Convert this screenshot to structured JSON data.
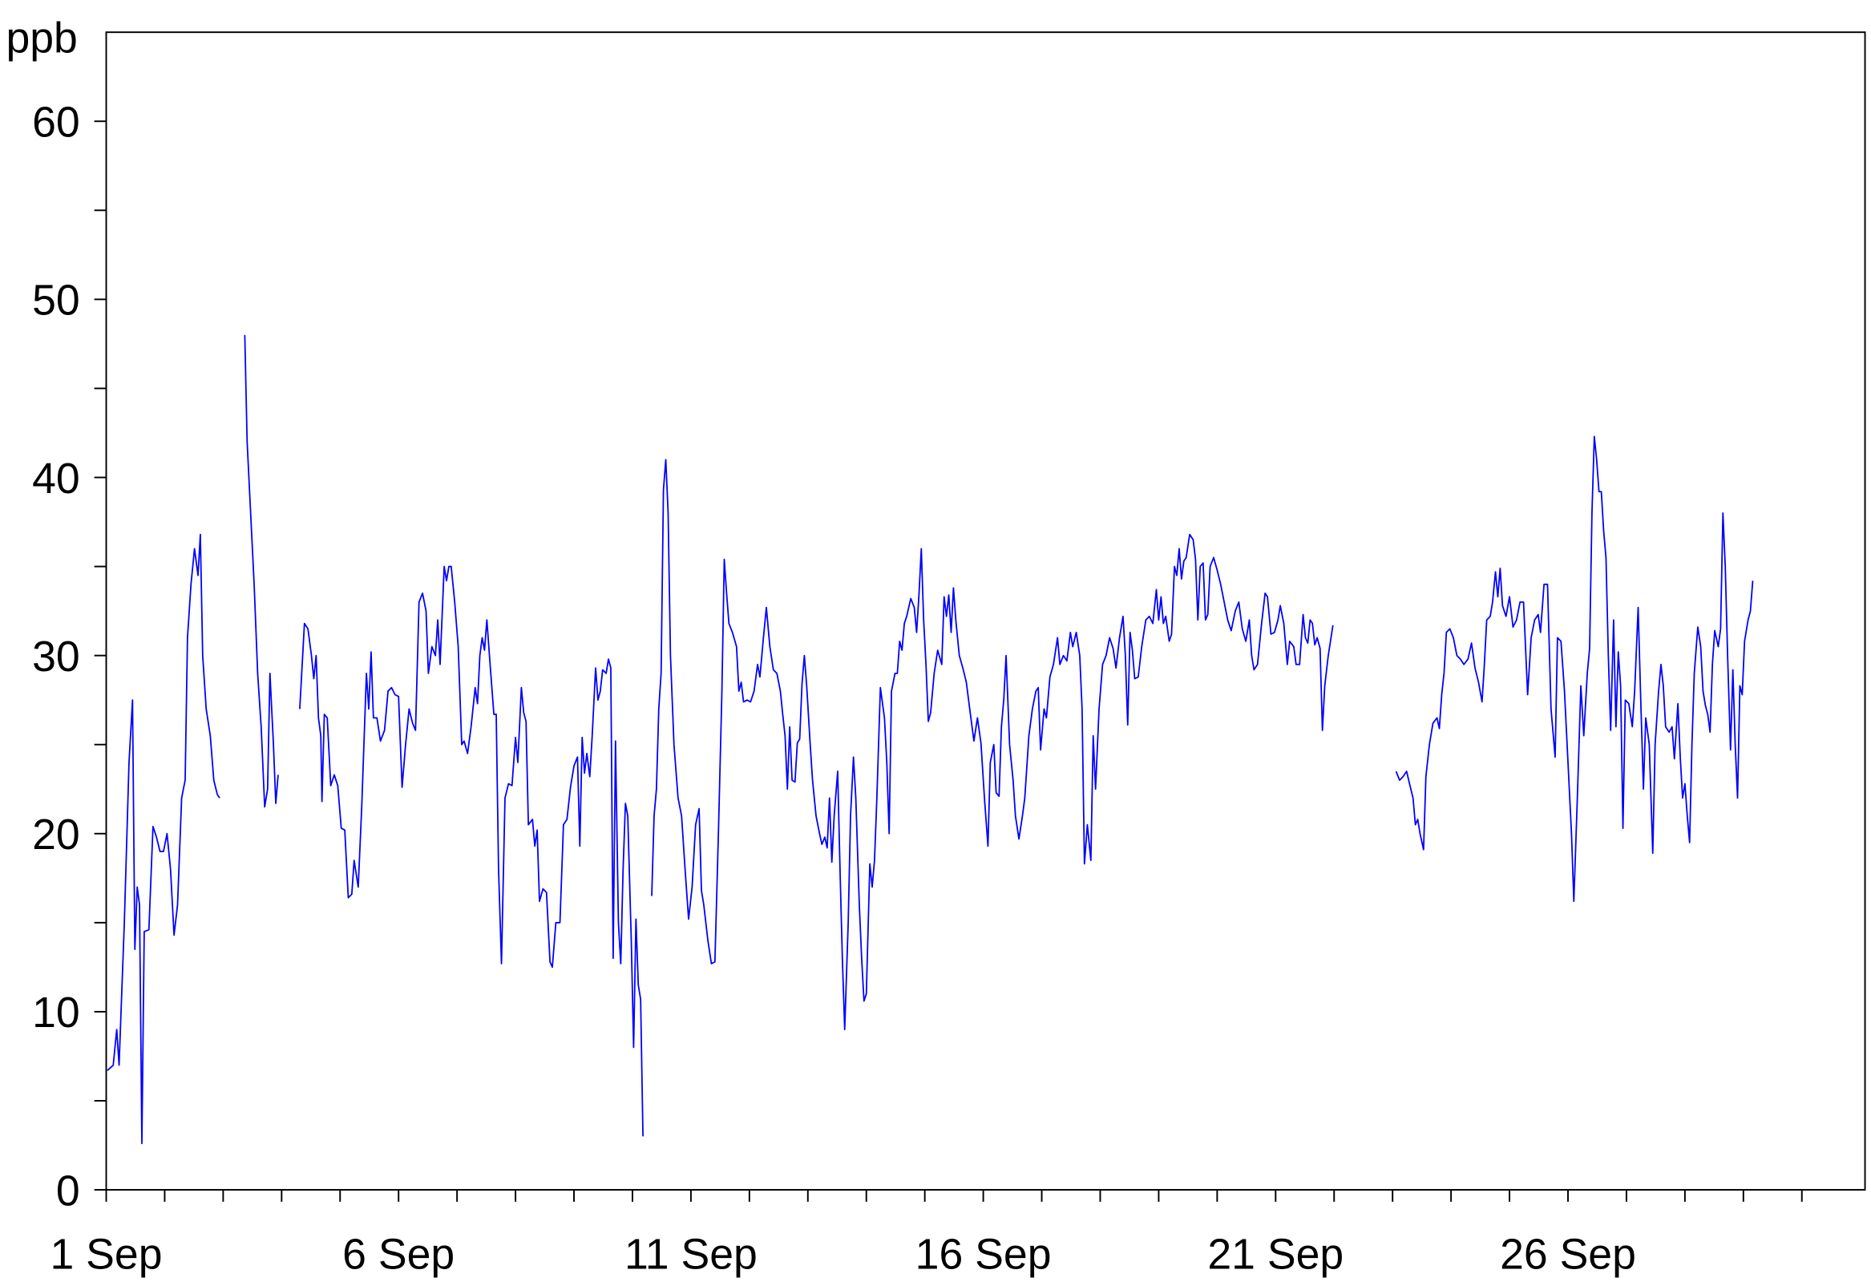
{
  "chart_data": {
    "type": "line",
    "ylabel": "ppb",
    "color": "#0000ff",
    "xlim": [
      1,
      31.08
    ],
    "ylim": [
      0,
      65
    ],
    "xticks": [
      {
        "value": 1,
        "label": "1 Sep"
      },
      {
        "value": 6,
        "label": "6 Sep"
      },
      {
        "value": 11,
        "label": "11 Sep"
      },
      {
        "value": 16,
        "label": "16 Sep"
      },
      {
        "value": 21,
        "label": "21 Sep"
      },
      {
        "value": 26,
        "label": "26 Sep"
      }
    ],
    "xminorticks": [
      2,
      3,
      4,
      5,
      7,
      8,
      9,
      10,
      12,
      13,
      14,
      15,
      17,
      18,
      19,
      20,
      22,
      23,
      24,
      25,
      27,
      28,
      29,
      30
    ],
    "yticks": [
      0,
      10,
      20,
      30,
      40,
      50,
      60
    ],
    "yminorticks": [
      5,
      15,
      25,
      35,
      45,
      55
    ],
    "x": [
      1.02,
      1.12,
      1.18,
      1.22,
      1.31,
      1.39,
      1.45,
      1.49,
      1.53,
      1.57,
      1.61,
      1.65,
      1.73,
      1.8,
      1.86,
      1.92,
      1.98,
      2.04,
      2.1,
      2.16,
      2.22,
      2.29,
      2.35,
      2.39,
      2.45,
      2.51,
      2.57,
      2.61,
      2.65,
      2.71,
      2.78,
      2.84,
      2.9,
      2.94,
      3.1,
      3.37,
      3.41,
      3.47,
      3.53,
      3.59,
      3.65,
      3.71,
      3.76,
      3.8,
      3.86,
      3.9,
      3.94,
      4.1,
      4.31,
      4.39,
      4.45,
      4.51,
      4.55,
      4.59,
      4.63,
      4.67,
      4.69,
      4.73,
      4.78,
      4.84,
      4.9,
      4.96,
      5.02,
      5.08,
      5.14,
      5.2,
      5.24,
      5.31,
      5.37,
      5.45,
      5.49,
      5.53,
      5.57,
      5.63,
      5.69,
      5.76,
      5.82,
      5.88,
      5.94,
      6.0,
      6.06,
      6.12,
      6.18,
      6.24,
      6.29,
      6.35,
      6.41,
      6.47,
      6.51,
      6.57,
      6.63,
      6.67,
      6.71,
      6.78,
      6.82,
      6.86,
      6.9,
      6.96,
      7.02,
      7.08,
      7.12,
      7.18,
      7.24,
      7.31,
      7.35,
      7.39,
      7.43,
      7.47,
      7.51,
      7.57,
      7.63,
      7.67,
      7.71,
      7.76,
      7.82,
      7.88,
      7.94,
      8.0,
      8.04,
      8.1,
      8.14,
      8.18,
      8.22,
      8.29,
      8.33,
      8.37,
      8.41,
      8.47,
      8.53,
      8.59,
      8.63,
      8.69,
      8.76,
      8.82,
      8.88,
      8.94,
      9.0,
      9.06,
      9.1,
      9.14,
      9.18,
      9.22,
      9.27,
      9.31,
      9.37,
      9.41,
      9.45,
      9.49,
      9.55,
      9.59,
      9.63,
      9.67,
      9.71,
      9.76,
      9.8,
      9.84,
      9.88,
      9.92,
      9.98,
      10.02,
      10.06,
      10.1,
      10.14,
      10.18,
      10.25,
      10.33,
      10.37,
      10.41,
      10.45,
      10.49,
      10.53,
      10.57,
      10.61,
      10.65,
      10.71,
      10.78,
      10.84,
      10.9,
      10.96,
      11.02,
      11.08,
      11.14,
      11.18,
      11.22,
      11.29,
      11.35,
      11.41,
      11.47,
      11.53,
      11.57,
      11.61,
      11.65,
      11.71,
      11.78,
      11.82,
      11.86,
      11.9,
      11.96,
      12.02,
      12.08,
      12.14,
      12.18,
      12.24,
      12.29,
      12.35,
      12.41,
      12.47,
      12.53,
      12.57,
      12.61,
      12.65,
      12.69,
      12.73,
      12.78,
      12.82,
      12.86,
      12.9,
      12.94,
      12.98,
      13.04,
      13.08,
      13.14,
      13.2,
      13.24,
      13.29,
      13.33,
      13.37,
      13.41,
      13.45,
      13.51,
      13.55,
      13.59,
      13.63,
      13.69,
      13.73,
      13.78,
      13.82,
      13.88,
      13.92,
      13.96,
      14.0,
      14.06,
      14.1,
      14.14,
      14.18,
      14.24,
      14.31,
      14.35,
      14.39,
      14.43,
      14.49,
      14.53,
      14.57,
      14.61,
      14.65,
      14.69,
      14.76,
      14.82,
      14.86,
      14.9,
      14.94,
      14.98,
      15.02,
      15.06,
      15.1,
      15.16,
      15.22,
      15.29,
      15.33,
      15.37,
      15.41,
      15.45,
      15.49,
      15.53,
      15.59,
      15.65,
      15.71,
      15.78,
      15.84,
      15.9,
      15.96,
      16.02,
      16.08,
      16.12,
      16.18,
      16.22,
      16.27,
      16.31,
      16.35,
      16.39,
      16.45,
      16.51,
      16.55,
      16.61,
      16.67,
      16.71,
      16.78,
      16.84,
      16.9,
      16.94,
      16.98,
      17.04,
      17.08,
      17.14,
      17.2,
      17.27,
      17.31,
      17.37,
      17.43,
      17.49,
      17.53,
      17.59,
      17.65,
      17.69,
      17.73,
      17.78,
      17.84,
      17.88,
      17.92,
      17.98,
      18.04,
      18.1,
      18.16,
      18.22,
      18.27,
      18.33,
      18.39,
      18.43,
      18.47,
      18.51,
      18.55,
      18.59,
      18.65,
      18.71,
      18.78,
      18.84,
      18.9,
      18.96,
      19.0,
      19.04,
      19.08,
      19.12,
      19.18,
      19.22,
      19.27,
      19.31,
      19.35,
      19.39,
      19.43,
      19.47,
      19.53,
      19.59,
      19.63,
      19.67,
      19.71,
      19.76,
      19.8,
      19.84,
      19.88,
      19.94,
      20.0,
      20.06,
      20.12,
      20.18,
      20.24,
      20.31,
      20.37,
      20.43,
      20.49,
      20.55,
      20.59,
      20.63,
      20.69,
      20.76,
      20.82,
      20.86,
      20.92,
      20.98,
      21.04,
      21.08,
      21.14,
      21.2,
      21.24,
      21.31,
      21.35,
      21.41,
      21.47,
      21.51,
      21.55,
      21.59,
      21.63,
      21.67,
      21.71,
      21.76,
      21.8,
      21.84,
      21.9,
      21.98,
      22.5,
      23.06,
      23.12,
      23.18,
      23.24,
      23.29,
      23.35,
      23.39,
      23.43,
      23.47,
      23.53,
      23.57,
      23.63,
      23.69,
      23.76,
      23.8,
      23.84,
      23.88,
      23.92,
      23.98,
      24.04,
      24.1,
      24.16,
      24.22,
      24.29,
      24.35,
      24.41,
      24.47,
      24.53,
      24.57,
      24.61,
      24.67,
      24.71,
      24.76,
      24.8,
      24.84,
      24.88,
      24.94,
      25.0,
      25.06,
      25.12,
      25.18,
      25.24,
      25.31,
      25.37,
      25.43,
      25.49,
      25.53,
      25.59,
      25.65,
      25.71,
      25.78,
      25.82,
      25.88,
      25.94,
      26.0,
      26.06,
      26.1,
      26.16,
      26.22,
      26.27,
      26.33,
      26.37,
      26.41,
      26.45,
      26.49,
      26.53,
      26.57,
      26.61,
      26.65,
      26.69,
      26.73,
      26.78,
      26.82,
      26.86,
      26.9,
      26.94,
      26.98,
      27.04,
      27.1,
      27.14,
      27.2,
      27.24,
      27.29,
      27.33,
      27.39,
      27.45,
      27.49,
      27.55,
      27.59,
      27.63,
      27.67,
      27.73,
      27.78,
      27.82,
      27.88,
      27.92,
      27.96,
      28.0,
      28.04,
      28.08,
      28.12,
      28.16,
      28.22,
      28.27,
      28.31,
      28.35,
      28.39,
      28.43,
      28.47,
      28.51,
      28.57,
      28.61,
      28.65,
      28.69,
      28.73,
      28.78,
      28.82,
      28.86,
      28.9,
      28.94,
      28.98,
      29.02,
      29.08,
      29.12,
      29.16
    ],
    "values": [
      6.7,
      7.0,
      9,
      7,
      15,
      24,
      27.5,
      13.5,
      17,
      16,
      2.6,
      14.5,
      14.6,
      20.4,
      19.8,
      19,
      19,
      20,
      18,
      14.3,
      16,
      22,
      23,
      31,
      34,
      36,
      34.5,
      36.8,
      30,
      27,
      25.5,
      23,
      22.2,
      22,
      null,
      48,
      42,
      38,
      34,
      29,
      26,
      21.5,
      22.5,
      29,
      25,
      21.7,
      23.3,
      null,
      27,
      31.8,
      31.5,
      30,
      28.7,
      30,
      26.5,
      25.5,
      21.8,
      26.7,
      26.5,
      22.7,
      23.3,
      22.7,
      20.3,
      20.2,
      16.4,
      16.6,
      18.5,
      17,
      21.5,
      29,
      27,
      30.2,
      26.5,
      26.5,
      25.2,
      25.8,
      28,
      28.2,
      27.8,
      27.7,
      22.6,
      25,
      27,
      26.2,
      25.8,
      33,
      33.5,
      32.5,
      29,
      30.5,
      30,
      32,
      29.5,
      35,
      34.2,
      35,
      35,
      33,
      30.5,
      25,
      25.2,
      24.5,
      26,
      28.2,
      27.3,
      30,
      31,
      30.3,
      32,
      29.3,
      26.7,
      26.7,
      18,
      12.7,
      22,
      22.8,
      22.7,
      25.4,
      24,
      28.2,
      26.8,
      26.3,
      20.5,
      20.8,
      19.3,
      20.2,
      16.2,
      16.9,
      16.7,
      12.8,
      12.5,
      15,
      15,
      20.5,
      20.8,
      22.6,
      23.8,
      24.3,
      19.3,
      25.4,
      23.4,
      24.5,
      23.2,
      25.4,
      29.3,
      27.5,
      28,
      29.2,
      29,
      29.8,
      29.3,
      13,
      25.2,
      15,
      12.7,
      18,
      21.7,
      21,
      14,
      8,
      15.2,
      11.5,
      10.7,
      3,
      null,
      16.5,
      21,
      22.5,
      27,
      29,
      39.3,
      41,
      38,
      30,
      25,
      22,
      21,
      18,
      15.2,
      17,
      20.5,
      21.4,
      16.8,
      16,
      14,
      12.7,
      12.8,
      20,
      28,
      35.4,
      33.5,
      31.8,
      31.3,
      30.5,
      28,
      28.5,
      27.4,
      27.5,
      27.4,
      28,
      29.5,
      28.8,
      31,
      32.7,
      30.5,
      29.2,
      29,
      28,
      26.7,
      25.5,
      22.5,
      26,
      23,
      22.9,
      25.1,
      25.3,
      28.4,
      30,
      28.3,
      25,
      23,
      21,
      20,
      19.4,
      19.8,
      19.2,
      22,
      18.4,
      21,
      23.5,
      18,
      13,
      9,
      15,
      21,
      24.3,
      22,
      16,
      13,
      10.6,
      11,
      18.3,
      17,
      18.5,
      22,
      28.2,
      26.5,
      24,
      20,
      28,
      29,
      29,
      30.8,
      30.3,
      31.8,
      32.2,
      33.2,
      32.7,
      31.3,
      33.4,
      36,
      32,
      29.5,
      26.3,
      26.8,
      29,
      30.3,
      29.5,
      33.3,
      32.2,
      33.4,
      31.3,
      33.8,
      32,
      30,
      29.3,
      28.5,
      26.7,
      25.2,
      26.5,
      25.1,
      22,
      19.3,
      24,
      25,
      22.3,
      22.1,
      26,
      27.5,
      30,
      25,
      23,
      21,
      19.7,
      21,
      22,
      25.5,
      27,
      28,
      28.2,
      24.7,
      27,
      26.5,
      28.8,
      29.5,
      31,
      29.5,
      30,
      29.7,
      31.3,
      30.5,
      31.3,
      30,
      27,
      18.3,
      20.5,
      18.5,
      25.5,
      22.5,
      27,
      29.5,
      30,
      31,
      30.4,
      29.3,
      31,
      32.2,
      30,
      26.1,
      31.3,
      30.3,
      28.7,
      28.8,
      30.5,
      32,
      32.2,
      31.8,
      33.7,
      32,
      33.3,
      31.8,
      32.2,
      30.8,
      31.2,
      35,
      34.5,
      36,
      34.3,
      35.3,
      35.5,
      36.8,
      36.5,
      35.4,
      32,
      35,
      35.2,
      32,
      32.3,
      35,
      35.5,
      34.8,
      34,
      33,
      32,
      31.4,
      32.5,
      33,
      31.5,
      30.8,
      32,
      30,
      29.2,
      29.5,
      31.8,
      33.5,
      33.3,
      31.2,
      31.3,
      32,
      32.8,
      31.8,
      29.5,
      30.8,
      30.5,
      29.5,
      29.5,
      32.3,
      31,
      30.7,
      32,
      31.8,
      30.6,
      31,
      30.4,
      25.8,
      28.3,
      30,
      31.7,
      null,
      23.5,
      23,
      23.2,
      23.5,
      22.8,
      22,
      20.5,
      20.8,
      20,
      19.1,
      23.2,
      25,
      26.2,
      26.5,
      25.9,
      27.8,
      29,
      31.3,
      31.5,
      31,
      30,
      29.8,
      29.5,
      29.8,
      30.7,
      29.3,
      28.5,
      27.4,
      29.5,
      32,
      32.2,
      33,
      34.7,
      33.3,
      34.9,
      32.8,
      32.2,
      33.3,
      31.6,
      32,
      33,
      33,
      27.8,
      31,
      32,
      32.3,
      31.3,
      34,
      34,
      27,
      24.3,
      31,
      30.8,
      28,
      24,
      20,
      16.2,
      22,
      28.3,
      25.5,
      29,
      30.4,
      38,
      42.3,
      41,
      39.2,
      39.2,
      37,
      35.5,
      30,
      25.8,
      32,
      26,
      30.2,
      28.3,
      20.3,
      27.5,
      27.3,
      26,
      28,
      32.7,
      28,
      22.5,
      26.5,
      25,
      18.9,
      25,
      28,
      29.5,
      28.3,
      26,
      25.7,
      26,
      24.2,
      27.3,
      24.3,
      22,
      22.8,
      21,
      19.5,
      25,
      29,
      31.6,
      30.5,
      28,
      27.2,
      26.7,
      25.7,
      29.5,
      31.4,
      30.5,
      31.5,
      38,
      35,
      30,
      24.7,
      29.2,
      25,
      22,
      28.3,
      27.8,
      30.8,
      32,
      32.5,
      34.2
    ]
  }
}
